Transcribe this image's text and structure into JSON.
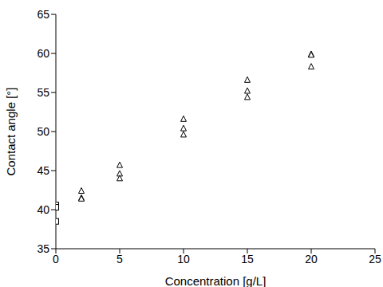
{
  "chart_data": {
    "type": "scatter",
    "xlabel": "Concentration [g/L]",
    "ylabel": "Contact angle [°]",
    "xlim": [
      0,
      25
    ],
    "xticks": [
      0,
      5,
      10,
      15,
      20,
      25
    ],
    "ylim": [
      35,
      65
    ],
    "yticks": [
      35,
      40,
      45,
      50,
      55,
      60,
      65
    ],
    "grid": false,
    "series": [
      {
        "marker": "square",
        "color": "#000000",
        "x": [
          0,
          0,
          0
        ],
        "values": [
          40.6,
          40.3,
          38.5
        ]
      },
      {
        "marker": "triangle",
        "color": "#000000",
        "x": [
          2,
          2,
          2,
          5,
          5,
          5,
          10,
          10,
          10,
          15,
          15,
          15,
          20,
          20,
          20
        ],
        "values": [
          42.4,
          41.5,
          41.4,
          45.7,
          44.6,
          44.0,
          51.6,
          50.4,
          49.6,
          56.6,
          55.2,
          54.4,
          59.9,
          59.8,
          58.3
        ]
      }
    ]
  }
}
